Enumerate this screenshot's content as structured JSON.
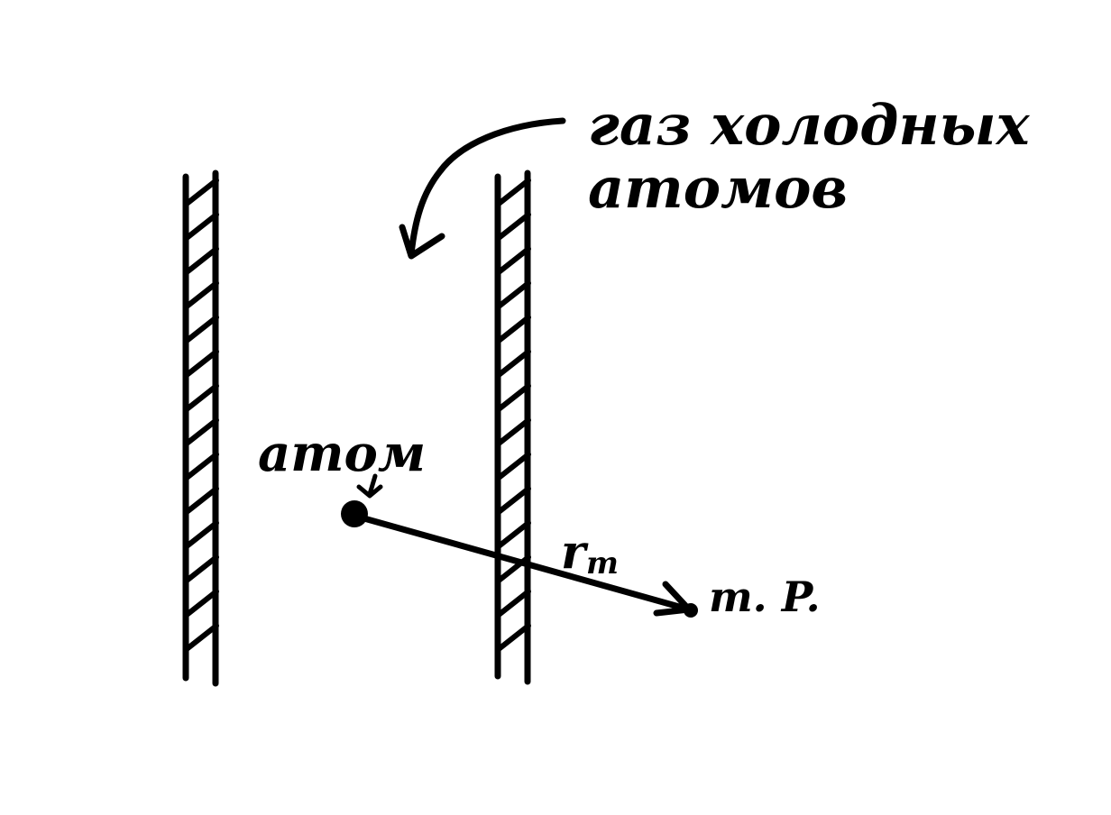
{
  "diagram": {
    "labels": {
      "gas": "газ холодных",
      "gas_line2": "атомов",
      "atom": "атом",
      "distance": "r",
      "distance_subscript": "m",
      "point": "т. P."
    },
    "colors": {
      "ink": "#000000",
      "background": "#ffffff"
    }
  }
}
